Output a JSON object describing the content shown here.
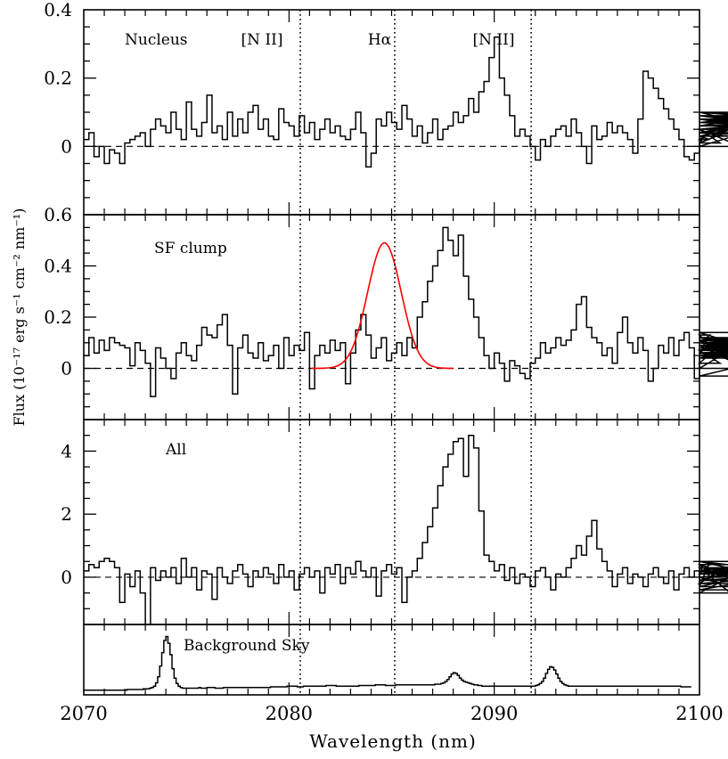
{
  "chart_data": {
    "type": "line",
    "subtype": "step",
    "xlabel": "Wavelength (nm)",
    "ylabel": "Flux (10⁻¹⁷ erg s⁻¹ cm⁻² nm⁻¹)",
    "xlim": [
      2070,
      2100
    ],
    "x_ticks": [
      2070,
      2080,
      2090,
      2100
    ],
    "x_tick_labels": [
      "2070",
      "2080",
      "2090",
      "2100"
    ],
    "reference_lines": {
      "style": "dotted",
      "x": [
        2080.55,
        2085.15,
        2091.8
      ],
      "labels": [
        "[N II]",
        "Hα",
        "[N II]"
      ]
    },
    "panels": [
      {
        "label": "Nucleus",
        "ylim": [
          -0.2,
          0.4
        ],
        "y_ticks": [
          0,
          0.2,
          0.4
        ],
        "y_tick_labels": [
          "0",
          "0.2",
          "0.4"
        ],
        "zero_line": "dashed",
        "series": [
          {
            "x0": 2070,
            "dx": 0.25,
            "values": [
              0.02,
              0.04,
              -0.03,
              0.0,
              -0.05,
              -0.01,
              -0.02,
              -0.05,
              0.01,
              0.02,
              0.03,
              0.04,
              0.0,
              0.05,
              0.08,
              0.06,
              0.04,
              0.1,
              0.05,
              0.02,
              0.13,
              0.05,
              0.03,
              0.07,
              0.15,
              0.04,
              0.06,
              0.02,
              0.1,
              0.03,
              0.08,
              0.04,
              0.1,
              0.12,
              0.05,
              0.08,
              0.03,
              0.02,
              0.11,
              0.07,
              0.06,
              0.03,
              0.09,
              0.04,
              0.07,
              0.02,
              0.05,
              0.08,
              0.04,
              0.06,
              0.03,
              0.02,
              0.05,
              0.1,
              0.04,
              -0.06,
              -0.02,
              0.08,
              0.06,
              0.1,
              0.07,
              0.05,
              0.12,
              0.08,
              0.03,
              0.06,
              0.01,
              0.04,
              0.08,
              0.02,
              0.05,
              0.06,
              0.1,
              0.07,
              0.09,
              0.14,
              0.1,
              0.16,
              0.19,
              0.26,
              0.32,
              0.2,
              0.15,
              0.09,
              0.03,
              0.05,
              0.03,
              0.0,
              -0.04,
              0.02,
              0.0,
              0.03,
              0.05,
              0.06,
              0.03,
              0.08,
              0.04,
              0.0,
              -0.05,
              0.06,
              0.02,
              0.03,
              0.07,
              0.04,
              0.06,
              0.04,
              0.02,
              -0.02,
              0.08,
              0.22,
              0.2,
              0.17,
              0.14,
              0.11,
              0.08,
              0.05,
              0.02,
              -0.03,
              -0.04,
              -0.02,
              0.01,
              0.03,
              0.02,
              0.05,
              0.01,
              0.04,
              0.03,
              0.05,
              0.0,
              0.04,
              0.07,
              0.08,
              0.05,
              0.07,
              0.09,
              0.06,
              0.1,
              0.04,
              0.03,
              0.09,
              0.08,
              0.05,
              0.07,
              0.1,
              0.07,
              0.09,
              0.06,
              0.08,
              0.04,
              0.09,
              0.07,
              0.05,
              0.08,
              0.06,
              0.09,
              0.05,
              0.08,
              0.04,
              0.1,
              0.07
            ]
          }
        ]
      },
      {
        "label": "SF clump",
        "ylim": [
          -0.2,
          0.6
        ],
        "y_ticks": [
          0,
          0.2,
          0.4,
          0.6
        ],
        "y_tick_labels": [
          "0",
          "0.2",
          "0.4",
          "0.6"
        ],
        "zero_line": "dashed",
        "series": [
          {
            "x0": 2070,
            "dx": 0.25,
            "values": [
              0.05,
              0.12,
              0.06,
              0.11,
              0.07,
              0.12,
              0.1,
              0.09,
              0.08,
              0.01,
              0.1,
              0.07,
              0.02,
              -0.11,
              0.08,
              0.04,
              0.0,
              -0.04,
              0.06,
              0.1,
              0.05,
              0.03,
              0.09,
              0.16,
              0.13,
              0.12,
              0.17,
              0.21,
              0.09,
              -0.1,
              0.08,
              0.13,
              0.06,
              0.04,
              0.1,
              0.03,
              0.05,
              0.09,
              0.0,
              0.12,
              0.05,
              0.09,
              0.07,
              0.14,
              -0.08,
              0.05,
              0.09,
              0.06,
              0.11,
              0.07,
              0.1,
              -0.06,
              0.06,
              0.15,
              0.21,
              0.13,
              0.04,
              0.08,
              0.12,
              0.03,
              0.06,
              0.1,
              0.05,
              0.12,
              0.08,
              0.2,
              0.26,
              0.34,
              0.4,
              0.46,
              0.55,
              0.5,
              0.44,
              0.52,
              0.36,
              0.27,
              0.2,
              0.12,
              0.05,
              0.0,
              0.06,
              0.02,
              -0.05,
              0.03,
              0.01,
              -0.02,
              -0.04,
              0.02,
              0.04,
              0.1,
              0.06,
              0.08,
              0.12,
              0.09,
              0.11,
              0.15,
              0.25,
              0.28,
              0.16,
              0.12,
              0.1,
              0.05,
              0.08,
              0.02,
              0.14,
              0.2,
              0.1,
              0.06,
              0.12,
              0.07,
              -0.05,
              0.0,
              0.09,
              0.06,
              0.12,
              0.05,
              0.11,
              0.14,
              0.08,
              -0.04,
              0.05,
              0.1,
              0.13,
              0.07,
              0.02,
              0.11,
              0.06,
              0.04,
              0.09,
              0.0,
              0.12,
              0.07,
              0.14,
              0.06,
              0.08,
              0.1,
              0.05,
              0.09,
              0.04,
              0.11,
              -0.03,
              0.07,
              0.1,
              0.05,
              0.08,
              0.12,
              0.06,
              0.09,
              0.04,
              0.08,
              0.1,
              0.05,
              0.09,
              0.07,
              0.11,
              0.08,
              0.05,
              0.1,
              0.12,
              0.08,
              0.04,
              0.11,
              0.07,
              0.09,
              0.05,
              0.1,
              0.08,
              0.12,
              0.06,
              0.09,
              0.11,
              0.05,
              0.1
            ]
          }
        ],
        "fit": {
          "type": "gaussian",
          "color": "#ff0000",
          "amplitude": 0.49,
          "center": 2084.65,
          "sigma": 0.82,
          "x_range": [
            2081.1,
            2088.0
          ]
        }
      },
      {
        "label": "All",
        "ylim": [
          -1.5,
          5
        ],
        "y_ticks": [
          0,
          2,
          4
        ],
        "y_tick_labels": [
          "0",
          "2",
          "4"
        ],
        "zero_line": "dashed",
        "series": [
          {
            "x0": 2070,
            "dx": 0.25,
            "values": [
              0.2,
              0.4,
              0.3,
              0.5,
              0.6,
              0.5,
              0.3,
              -0.8,
              0.1,
              -0.3,
              0.2,
              -0.5,
              -1.5,
              0.3,
              -0.1,
              0.2,
              0.0,
              0.3,
              -0.2,
              0.6,
              0.0,
              0.3,
              -0.4,
              0.2,
              0.1,
              -0.7,
              0.3,
              0.0,
              -0.2,
              0.2,
              0.4,
              0.1,
              -0.3,
              0.2,
              0.0,
              0.3,
              0.1,
              -0.2,
              0.4,
              0.0,
              0.2,
              -0.4,
              0.1,
              0.3,
              0.0,
              0.2,
              -0.5,
              0.3,
              0.1,
              0.4,
              -0.2,
              0.3,
              0.1,
              0.5,
              0.2,
              0.0,
              0.3,
              -0.6,
              0.2,
              0.4,
              0.1,
              0.3,
              -0.8,
              0.0,
              0.2,
              0.6,
              1.1,
              1.6,
              2.2,
              2.9,
              3.5,
              3.9,
              4.3,
              4.4,
              3.2,
              4.5,
              4.1,
              2.1,
              0.7,
              0.5,
              0.2,
              0.4,
              -0.1,
              0.3,
              -0.2,
              0.1,
              0.0,
              -0.3,
              0.2,
              0.3,
              0.0,
              -0.4,
              0.1,
              0.0,
              0.3,
              0.6,
              1.0,
              0.7,
              1.3,
              1.8,
              0.9,
              0.5,
              0.2,
              -0.3,
              0.1,
              0.3,
              -0.2,
              0.1,
              0.0,
              -0.3,
              0.1,
              0.3,
              0.0,
              -0.2,
              0.2,
              -0.4,
              0.1,
              0.3,
              0.0,
              0.2,
              -0.3,
              0.1,
              0.4,
              0.0,
              -0.2,
              0.3,
              -0.5,
              0.1,
              0.2,
              0.4,
              -0.1,
              0.3,
              0.1,
              0.5,
              0.0,
              0.2,
              -0.3,
              0.3,
              0.1,
              0.2,
              -0.4,
              0.2,
              0.0,
              0.3,
              -0.2,
              0.1,
              0.5,
              0.0,
              0.3,
              -0.1,
              0.2
            ]
          }
        ]
      },
      {
        "label": "Background Sky",
        "ylim": [
          -0.05,
          1.0
        ],
        "y_ticks": [],
        "y_tick_labels": [],
        "zero_line": "none",
        "series": [
          {
            "x0": 2070,
            "dx": 0.1,
            "values": [
              0.02,
              0.02,
              0.02,
              0.02,
              0.02,
              0.02,
              0.02,
              0.02,
              0.02,
              0.02,
              0.02,
              0.02,
              0.02,
              0.02,
              0.02,
              0.02,
              0.02,
              0.02,
              0.02,
              0.02,
              0.02,
              0.03,
              0.03,
              0.03,
              0.03,
              0.03,
              0.03,
              0.03,
              0.03,
              0.04,
              0.04,
              0.04,
              0.05,
              0.06,
              0.08,
              0.13,
              0.22,
              0.38,
              0.58,
              0.76,
              0.82,
              0.72,
              0.55,
              0.34,
              0.2,
              0.12,
              0.08,
              0.06,
              0.05,
              0.05,
              0.05,
              0.05,
              0.05,
              0.05,
              0.05,
              0.05,
              0.06,
              0.05,
              0.05,
              0.05,
              0.06,
              0.06,
              0.06,
              0.06,
              0.05,
              0.05,
              0.05,
              0.05,
              0.06,
              0.06,
              0.06,
              0.06,
              0.06,
              0.06,
              0.06,
              0.06,
              0.06,
              0.06,
              0.06,
              0.06,
              0.06,
              0.06,
              0.06,
              0.06,
              0.06,
              0.06,
              0.06,
              0.06,
              0.06,
              0.06,
              0.06,
              0.07,
              0.07,
              0.07,
              0.07,
              0.07,
              0.07,
              0.07,
              0.07,
              0.08,
              0.08,
              0.08,
              0.08,
              0.08,
              0.07,
              0.07,
              0.07,
              0.08,
              0.08,
              0.08,
              0.08,
              0.08,
              0.08,
              0.08,
              0.08,
              0.08,
              0.08,
              0.08,
              0.09,
              0.09,
              0.09,
              0.09,
              0.09,
              0.08,
              0.08,
              0.08,
              0.08,
              0.08,
              0.08,
              0.08,
              0.08,
              0.08,
              0.08,
              0.08,
              0.09,
              0.09,
              0.09,
              0.09,
              0.09,
              0.09,
              0.09,
              0.09,
              0.1,
              0.1,
              0.1,
              0.1,
              0.1,
              0.09,
              0.09,
              0.09,
              0.09,
              0.09,
              0.1,
              0.1,
              0.1,
              0.1,
              0.1,
              0.1,
              0.1,
              0.1,
              0.1,
              0.1,
              0.1,
              0.1,
              0.1,
              0.1,
              0.1,
              0.1,
              0.1,
              0.1,
              0.1,
              0.11,
              0.11,
              0.11,
              0.12,
              0.13,
              0.15,
              0.18,
              0.22,
              0.26,
              0.28,
              0.27,
              0.24,
              0.2,
              0.17,
              0.15,
              0.14,
              0.13,
              0.12,
              0.11,
              0.1,
              0.1,
              0.09,
              0.09,
              0.08,
              0.08,
              0.08,
              0.08,
              0.08,
              0.08,
              0.08,
              0.08,
              0.08,
              0.08,
              0.08,
              0.08,
              0.08,
              0.08,
              0.08,
              0.08,
              0.08,
              0.08,
              0.08,
              0.08,
              0.08,
              0.08,
              0.08,
              0.08,
              0.08,
              0.08,
              0.09,
              0.1,
              0.12,
              0.15,
              0.2,
              0.27,
              0.33,
              0.37,
              0.36,
              0.32,
              0.26,
              0.2,
              0.15,
              0.12,
              0.1,
              0.09,
              0.08,
              0.08,
              0.08,
              0.08,
              0.08,
              0.08,
              0.08,
              0.08,
              0.08,
              0.08,
              0.08,
              0.08,
              0.08,
              0.08,
              0.08,
              0.08,
              0.08,
              0.08,
              0.08,
              0.08,
              0.08,
              0.08,
              0.08,
              0.08,
              0.08,
              0.08,
              0.08,
              0.08,
              0.08,
              0.08,
              0.08,
              0.08,
              0.08,
              0.08,
              0.08,
              0.08,
              0.08,
              0.08,
              0.08,
              0.08,
              0.08,
              0.08,
              0.08,
              0.08,
              0.08,
              0.08,
              0.08,
              0.08,
              0.08,
              0.08,
              0.08,
              0.08,
              0.08,
              0.08,
              0.08,
              0.07,
              0.07,
              0.07,
              0.07,
              0.07
            ]
          }
        ]
      }
    ]
  }
}
